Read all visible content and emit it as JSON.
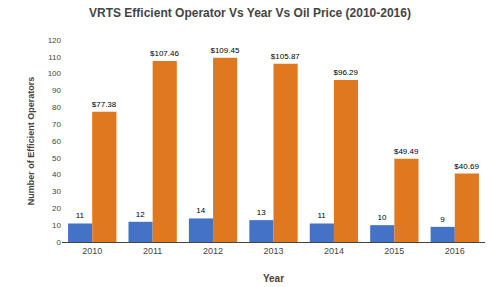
{
  "chart_data": {
    "type": "bar",
    "title": "VRTS Efficient Operator Vs Year Vs Oil Price (2010-2016)",
    "x_label": "Year",
    "y_label": "Number of Efficient Operators",
    "categories": [
      "2010",
      "2011",
      "2012",
      "2013",
      "2014",
      "2015",
      "2016"
    ],
    "series": [
      {
        "color": "#4472C4",
        "values": [
          11,
          12,
          14,
          13,
          11,
          10,
          9
        ]
      },
      {
        "color": "#E07820",
        "values": [
          77.38,
          107.46,
          109.45,
          105.87,
          96.29,
          49.49,
          40.69
        ],
        "value_labels": [
          "$77.38",
          "$107.46",
          "$109.45",
          "$105.87",
          "$96.29",
          "$49.49",
          "$40.69"
        ]
      }
    ],
    "ylim": [
      0,
      120
    ],
    "yticks": [
      0,
      10,
      20,
      30,
      40,
      50,
      60,
      70,
      80,
      90,
      100,
      110,
      120
    ],
    "grid": false,
    "data_labels": true
  }
}
